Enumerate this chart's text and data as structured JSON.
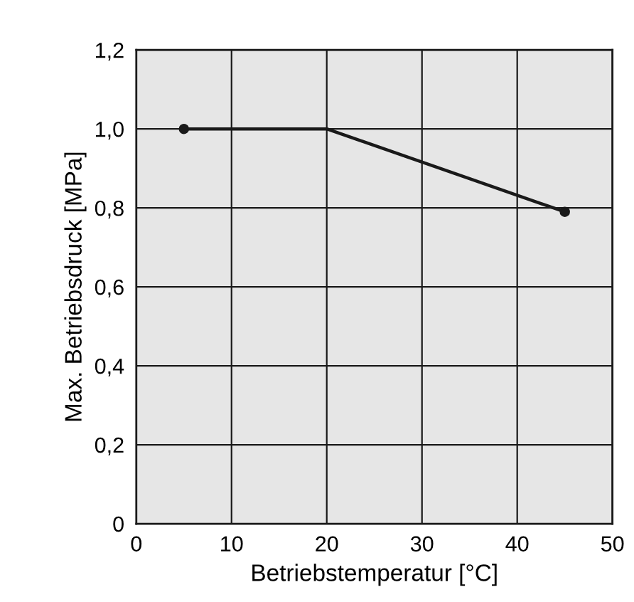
{
  "chart_data": {
    "type": "line",
    "xlabel": "Betriebstemperatur [°C]",
    "ylabel": "Max. Betriebsdruck [MPa]",
    "xlim": [
      0,
      50
    ],
    "ylim": [
      0,
      1.2
    ],
    "xticks": [
      0,
      10,
      20,
      30,
      40,
      50
    ],
    "yticks": [
      0,
      {
        "value": 0.2,
        "label": "0,2"
      },
      {
        "value": 0.4,
        "label": "0,4"
      },
      {
        "value": 0.6,
        "label": "0,6"
      },
      {
        "value": 0.8,
        "label": "0,8"
      },
      {
        "value": 1.0,
        "label": "1,0"
      },
      {
        "value": 1.2,
        "label": "1,2"
      }
    ],
    "grid": true,
    "line_style": "solid",
    "series": [
      {
        "color": "#1a1a1a",
        "x": [
          5,
          20,
          45
        ],
        "values": [
          1.0,
          1.0,
          0.79
        ]
      },
      {
        "type": "scatter",
        "color": "#1a1a1a",
        "marker": "circle",
        "x": [
          5,
          45
        ],
        "values": [
          1.0,
          0.79
        ]
      }
    ]
  }
}
